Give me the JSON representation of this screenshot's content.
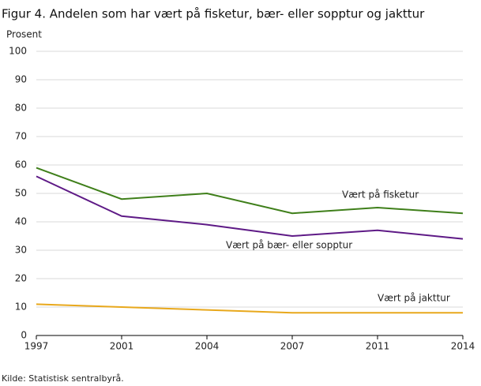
{
  "chart_data": {
    "type": "line",
    "title": "Figur 4. Andelen som har vært på fisketur, bær- eller sopptur og jakttur",
    "y_label": "Prosent",
    "source": "Kilde: Statistisk sentralbyrå.",
    "categories": [
      "1997",
      "2001",
      "2004",
      "2007",
      "2011",
      "2014"
    ],
    "series": [
      {
        "name": "Vært på fisketur",
        "color": "#3f7f1a",
        "values": [
          59,
          48,
          50,
          43,
          45,
          43
        ]
      },
      {
        "name": "Vært på bær- eller sopptur",
        "color": "#5e1a86",
        "values": [
          56,
          42,
          39,
          35,
          37,
          34
        ]
      },
      {
        "name": "Vært på jakttur",
        "color": "#e8a81c",
        "values": [
          11,
          10,
          9,
          8,
          8,
          8
        ]
      }
    ],
    "ylim": [
      0,
      100
    ],
    "yticks": [
      0,
      10,
      20,
      30,
      40,
      50,
      60,
      70,
      80,
      90,
      100
    ],
    "grid": true
  }
}
